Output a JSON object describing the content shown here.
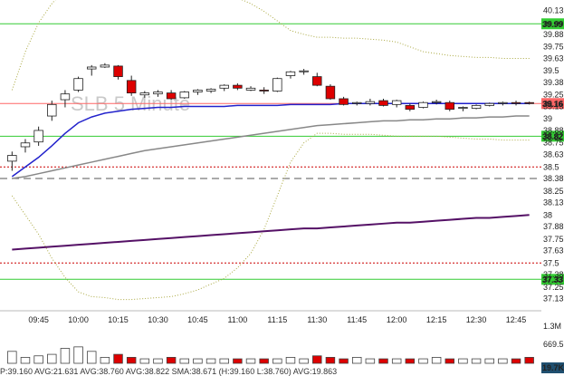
{
  "chart_data": {
    "type": "candlestick",
    "symbol": "SLB",
    "interval": "5 Minute",
    "x": [
      "09:35",
      "09:40",
      "09:45",
      "09:50",
      "09:55",
      "10:00",
      "10:05",
      "10:10",
      "10:15",
      "10:20",
      "10:25",
      "10:30",
      "10:35",
      "10:40",
      "10:45",
      "10:50",
      "10:55",
      "11:00",
      "11:05",
      "11:10",
      "11:15",
      "11:20",
      "11:25",
      "11:30",
      "11:35",
      "11:40",
      "11:45",
      "11:50",
      "11:55",
      "12:00",
      "12:05",
      "12:10",
      "12:15",
      "12:20",
      "12:25",
      "12:30",
      "12:35",
      "12:40",
      "12:45",
      "12:50"
    ],
    "candles": [
      {
        "o": 38.56,
        "h": 38.66,
        "l": 38.46,
        "c": 38.62
      },
      {
        "o": 38.71,
        "h": 38.79,
        "l": 38.65,
        "c": 38.75
      },
      {
        "o": 38.76,
        "h": 38.92,
        "l": 38.72,
        "c": 38.88
      },
      {
        "o": 39.03,
        "h": 39.19,
        "l": 38.98,
        "c": 39.15
      },
      {
        "o": 39.2,
        "h": 39.3,
        "l": 39.12,
        "c": 39.26
      },
      {
        "o": 39.3,
        "h": 39.44,
        "l": 39.28,
        "c": 39.42
      },
      {
        "o": 39.52,
        "h": 39.56,
        "l": 39.45,
        "c": 39.54
      },
      {
        "o": 39.54,
        "h": 39.58,
        "l": 39.53,
        "c": 39.56
      },
      {
        "o": 39.55,
        "h": 39.56,
        "l": 39.41,
        "c": 39.44
      },
      {
        "o": 39.4,
        "h": 39.45,
        "l": 39.24,
        "c": 39.27
      },
      {
        "o": 39.25,
        "h": 39.29,
        "l": 39.22,
        "c": 39.27
      },
      {
        "o": 39.26,
        "h": 39.3,
        "l": 39.23,
        "c": 39.28
      },
      {
        "o": 39.27,
        "h": 39.3,
        "l": 39.2,
        "c": 39.21
      },
      {
        "o": 39.22,
        "h": 39.29,
        "l": 39.21,
        "c": 39.28
      },
      {
        "o": 39.28,
        "h": 39.31,
        "l": 39.25,
        "c": 39.3
      },
      {
        "o": 39.29,
        "h": 39.32,
        "l": 39.27,
        "c": 39.31
      },
      {
        "o": 39.32,
        "h": 39.36,
        "l": 39.29,
        "c": 39.35
      },
      {
        "o": 39.35,
        "h": 39.37,
        "l": 39.3,
        "c": 39.32
      },
      {
        "o": 39.3,
        "h": 39.34,
        "l": 39.29,
        "c": 39.32
      },
      {
        "o": 39.3,
        "h": 39.33,
        "l": 39.26,
        "c": 39.29
      },
      {
        "o": 39.29,
        "h": 39.43,
        "l": 39.28,
        "c": 39.42
      },
      {
        "o": 39.45,
        "h": 39.5,
        "l": 39.42,
        "c": 39.49
      },
      {
        "o": 39.49,
        "h": 39.52,
        "l": 39.46,
        "c": 39.5
      },
      {
        "o": 39.44,
        "h": 39.48,
        "l": 39.34,
        "c": 39.35
      },
      {
        "o": 39.34,
        "h": 39.36,
        "l": 39.2,
        "c": 39.21
      },
      {
        "o": 39.21,
        "h": 39.23,
        "l": 39.14,
        "c": 39.15
      },
      {
        "o": 39.16,
        "h": 39.18,
        "l": 39.14,
        "c": 39.17
      },
      {
        "o": 39.16,
        "h": 39.21,
        "l": 39.14,
        "c": 39.18
      },
      {
        "o": 39.19,
        "h": 39.21,
        "l": 39.13,
        "c": 39.14
      },
      {
        "o": 39.15,
        "h": 39.2,
        "l": 39.12,
        "c": 39.19
      },
      {
        "o": 39.14,
        "h": 39.16,
        "l": 39.08,
        "c": 39.1
      },
      {
        "o": 39.12,
        "h": 39.18,
        "l": 39.11,
        "c": 39.17
      },
      {
        "o": 39.17,
        "h": 39.2,
        "l": 39.15,
        "c": 39.18
      },
      {
        "o": 39.17,
        "h": 39.19,
        "l": 39.08,
        "c": 39.1
      },
      {
        "o": 39.11,
        "h": 39.13,
        "l": 39.08,
        "c": 39.12
      },
      {
        "o": 39.11,
        "h": 39.15,
        "l": 39.1,
        "c": 39.14
      },
      {
        "o": 39.14,
        "h": 39.17,
        "l": 39.13,
        "c": 39.16
      },
      {
        "o": 39.16,
        "h": 39.18,
        "l": 39.14,
        "c": 39.17
      },
      {
        "o": 39.17,
        "h": 39.19,
        "l": 39.14,
        "c": 39.16
      },
      {
        "o": 39.17,
        "h": 39.18,
        "l": 39.15,
        "c": 39.16
      }
    ],
    "volume": [
      4,
      2,
      2.5,
      3,
      5,
      5.5,
      4,
      2,
      3,
      2,
      1.5,
      1.5,
      2,
      1.5,
      1.5,
      1.5,
      1.5,
      1.5,
      1.5,
      1.5,
      1.5,
      2,
      1.5,
      2.5,
      2,
      1.5,
      2,
      1.5,
      1.5,
      1.5,
      1.5,
      1.5,
      2,
      1.5,
      1.5,
      1.5,
      1.5,
      1.5,
      1.5,
      2
    ],
    "overlays": {
      "ma_fast": [
        38.4,
        38.5,
        38.6,
        38.72,
        38.85,
        38.96,
        39.02,
        39.06,
        39.08,
        39.1,
        39.11,
        39.12,
        39.12,
        39.13,
        39.13,
        39.13,
        39.13,
        39.14,
        39.14,
        39.14,
        39.14,
        39.15,
        39.15,
        39.15,
        39.15,
        39.16,
        39.16,
        39.16,
        39.16,
        39.16,
        39.16,
        39.16,
        39.16,
        39.16,
        39.16,
        39.16,
        39.16,
        39.16,
        39.16,
        39.16
      ],
      "ma_slow": [
        38.38,
        38.4,
        38.43,
        38.46,
        38.49,
        38.52,
        38.55,
        38.58,
        38.61,
        38.64,
        38.67,
        38.69,
        38.71,
        38.73,
        38.75,
        38.77,
        38.79,
        38.81,
        38.83,
        38.85,
        38.87,
        38.89,
        38.91,
        38.93,
        38.94,
        38.95,
        38.96,
        38.97,
        38.98,
        38.98,
        38.99,
        38.99,
        39.0,
        39.0,
        39.01,
        39.01,
        39.02,
        39.02,
        39.03,
        39.03
      ],
      "ma_long": [
        37.64,
        37.65,
        37.66,
        37.67,
        37.68,
        37.69,
        37.7,
        37.71,
        37.72,
        37.73,
        37.74,
        37.75,
        37.76,
        37.77,
        37.78,
        37.79,
        37.8,
        37.81,
        37.82,
        37.83,
        37.84,
        37.85,
        37.86,
        37.86,
        37.87,
        37.88,
        37.89,
        37.9,
        37.91,
        37.92,
        37.92,
        37.93,
        37.94,
        37.95,
        37.96,
        37.97,
        37.97,
        37.98,
        37.99,
        38.0
      ],
      "band_upper": [
        39.3,
        39.7,
        40.0,
        40.2,
        40.35,
        40.45,
        40.5,
        40.5,
        40.5,
        40.48,
        40.45,
        40.42,
        40.4,
        40.38,
        40.36,
        40.33,
        40.3,
        40.26,
        40.2,
        40.12,
        40.02,
        39.92,
        39.88,
        39.85,
        39.85,
        39.84,
        39.84,
        39.83,
        39.82,
        39.8,
        39.75,
        39.7,
        39.68,
        39.66,
        39.65,
        39.64,
        39.64,
        39.63,
        39.63,
        39.63
      ],
      "band_lower": [
        38.2,
        38.0,
        37.8,
        37.55,
        37.35,
        37.2,
        37.15,
        37.14,
        37.12,
        37.12,
        37.13,
        37.14,
        37.15,
        37.18,
        37.22,
        37.28,
        37.34,
        37.45,
        37.6,
        37.85,
        38.2,
        38.55,
        38.75,
        38.85,
        38.85,
        38.84,
        38.84,
        38.84,
        38.83,
        38.82,
        38.82,
        38.82,
        38.82,
        38.81,
        38.8,
        38.79,
        38.79,
        38.78,
        38.78,
        38.78
      ]
    },
    "horizontal_lines": [
      {
        "price": 39.99,
        "style": "solid",
        "color": "#33cc33",
        "tag": "39.99"
      },
      {
        "price": 39.16,
        "style": "solid",
        "color": "#ff6666",
        "tag": "39.16"
      },
      {
        "price": 38.82,
        "style": "solid",
        "color": "#33cc33",
        "tag": "38.82"
      },
      {
        "price": 38.5,
        "style": "dotted",
        "color": "#cc0000"
      },
      {
        "price": 38.38,
        "style": "dashed",
        "color": "#555555"
      },
      {
        "price": 37.5,
        "style": "dotted",
        "color": "#cc0000"
      },
      {
        "price": 37.33,
        "style": "solid",
        "color": "#33cc33",
        "tag": "37.33"
      }
    ],
    "y_ticks": [
      "40.13",
      "39.99",
      "39.88",
      "39.75",
      "39.63",
      "39.5",
      "39.38",
      "39.25",
      "39.16",
      "39.13",
      "39",
      "38.88",
      "38.82",
      "38.75",
      "38.63",
      "38.5",
      "38.38",
      "38.25",
      "38.13",
      "38",
      "37.88",
      "37.75",
      "37.63",
      "37.5",
      "37.38",
      "37.33",
      "37.25",
      "37.13"
    ],
    "y_tick_values": [
      40.13,
      39.99,
      39.88,
      39.75,
      39.63,
      39.5,
      39.38,
      39.25,
      39.16,
      39.13,
      39.0,
      38.88,
      38.82,
      38.75,
      38.63,
      38.5,
      38.38,
      38.25,
      38.13,
      38.0,
      37.88,
      37.75,
      37.63,
      37.5,
      37.38,
      37.33,
      37.25,
      37.13
    ],
    "x_ticks": [
      "09:45",
      "10:00",
      "10:15",
      "10:30",
      "10:45",
      "11:00",
      "11:15",
      "11:30",
      "11:45",
      "12:00",
      "12:15",
      "12:30",
      "12:45"
    ],
    "x_tick_index": [
      2,
      5,
      8,
      11,
      14,
      17,
      20,
      23,
      26,
      29,
      32,
      35,
      38
    ],
    "ylim": [
      37.05,
      40.2
    ],
    "volume_axis": [
      "1.3M",
      "669.5K"
    ],
    "volume_tag": "19.7K",
    "watermark": "SLB  5 Minute",
    "status_line": "P:39.160 AVG:21.631 AVG:38.760 AVG:38.822 SMA:38.671    (H:39.160 L:38.760) AVG:19.863",
    "colors": {
      "up": "#ffffff",
      "down": "#dd0000",
      "ma_fast": "#2222cc",
      "ma_slow": "#888888",
      "ma_long": "#551166",
      "band": "#aaa840"
    }
  }
}
